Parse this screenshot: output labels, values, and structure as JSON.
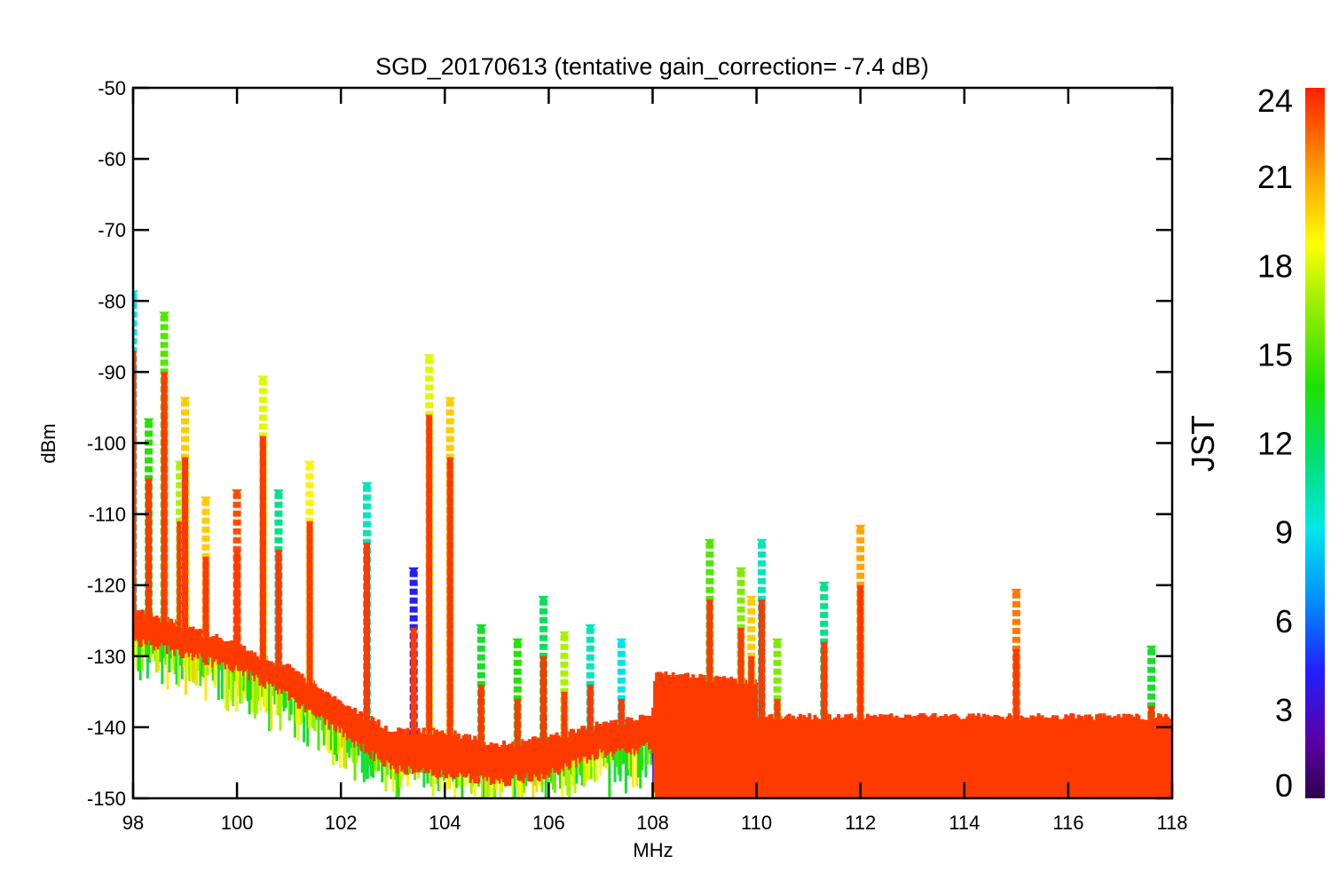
{
  "chart_data": {
    "type": "scatter",
    "title": "SGD_20170613 (tentative gain_correction= -7.4 dB)",
    "xlabel": "MHz",
    "ylabel": "dBm",
    "xlim": [
      98,
      118
    ],
    "ylim": [
      -150,
      -50
    ],
    "x_ticks": [
      "98",
      "100",
      "102",
      "104",
      "106",
      "108",
      "110",
      "112",
      "114",
      "116",
      "118"
    ],
    "y_ticks": [
      "-50",
      "-60",
      "-70",
      "-80",
      "-90",
      "-100",
      "-110",
      "-120",
      "-130",
      "-140",
      "-150"
    ],
    "colorbar": {
      "label": "JST",
      "range": [
        0,
        24
      ],
      "ticks": [
        "0",
        "3",
        "6",
        "9",
        "12",
        "15",
        "18",
        "21",
        "24"
      ],
      "colormap": "rainbow (purple to red)"
    },
    "baseline": [
      {
        "x": 98.0,
        "y_top": -124,
        "y_bottom": -127
      },
      {
        "x": 99.0,
        "y_top": -126,
        "y_bottom": -129
      },
      {
        "x": 100.0,
        "y_top": -129,
        "y_bottom": -131
      },
      {
        "x": 101.0,
        "y_top": -132,
        "y_bottom": -135
      },
      {
        "x": 102.0,
        "y_top": -137,
        "y_bottom": -140
      },
      {
        "x": 103.0,
        "y_top": -141,
        "y_bottom": -145
      },
      {
        "x": 104.0,
        "y_top": -141,
        "y_bottom": -146
      },
      {
        "x": 105.0,
        "y_top": -143,
        "y_bottom": -147
      },
      {
        "x": 106.0,
        "y_top": -142,
        "y_bottom": -146
      },
      {
        "x": 107.0,
        "y_top": -140,
        "y_bottom": -143
      },
      {
        "x": 108.0,
        "y_top": -139,
        "y_bottom": -142
      },
      {
        "x": 108.05,
        "y_top": -133,
        "y_bottom": -150
      },
      {
        "x": 110.0,
        "y_top": -134,
        "y_bottom": -150
      },
      {
        "x": 110.05,
        "y_top": -139,
        "y_bottom": -150
      },
      {
        "x": 118.0,
        "y_top": -139,
        "y_bottom": -150
      }
    ],
    "spikes": [
      {
        "x": 98.0,
        "y_max": -79,
        "jst": 9
      },
      {
        "x": 98.3,
        "y_max": -97,
        "jst": 14
      },
      {
        "x": 98.6,
        "y_max": -82,
        "jst": 15
      },
      {
        "x": 98.9,
        "y_max": -103,
        "jst": 17
      },
      {
        "x": 99.0,
        "y_max": -94,
        "jst": 20
      },
      {
        "x": 99.4,
        "y_max": -108,
        "jst": 20
      },
      {
        "x": 100.0,
        "y_max": -107,
        "jst": 23
      },
      {
        "x": 100.5,
        "y_max": -91,
        "jst": 18
      },
      {
        "x": 100.8,
        "y_max": -107,
        "jst": 11
      },
      {
        "x": 101.4,
        "y_max": -103,
        "jst": 19
      },
      {
        "x": 102.5,
        "y_max": -106,
        "jst": 10
      },
      {
        "x": 103.4,
        "y_max": -118,
        "jst": 4
      },
      {
        "x": 103.7,
        "y_max": -88,
        "jst": 18
      },
      {
        "x": 104.1,
        "y_max": -94,
        "jst": 20
      },
      {
        "x": 104.7,
        "y_max": -126,
        "jst": 13
      },
      {
        "x": 105.4,
        "y_max": -128,
        "jst": 14
      },
      {
        "x": 105.9,
        "y_max": -122,
        "jst": 12
      },
      {
        "x": 106.3,
        "y_max": -127,
        "jst": 17
      },
      {
        "x": 106.8,
        "y_max": -126,
        "jst": 10
      },
      {
        "x": 107.4,
        "y_max": -128,
        "jst": 9
      },
      {
        "x": 109.1,
        "y_max": -114,
        "jst": 15
      },
      {
        "x": 109.7,
        "y_max": -118,
        "jst": 16
      },
      {
        "x": 109.9,
        "y_max": -122,
        "jst": 20
      },
      {
        "x": 110.1,
        "y_max": -114,
        "jst": 10
      },
      {
        "x": 110.4,
        "y_max": -128,
        "jst": 16
      },
      {
        "x": 111.3,
        "y_max": -120,
        "jst": 11
      },
      {
        "x": 112.0,
        "y_max": -112,
        "jst": 21
      },
      {
        "x": 115.0,
        "y_max": -121,
        "jst": 22
      },
      {
        "x": 117.6,
        "y_max": -129,
        "jst": 13
      }
    ]
  }
}
